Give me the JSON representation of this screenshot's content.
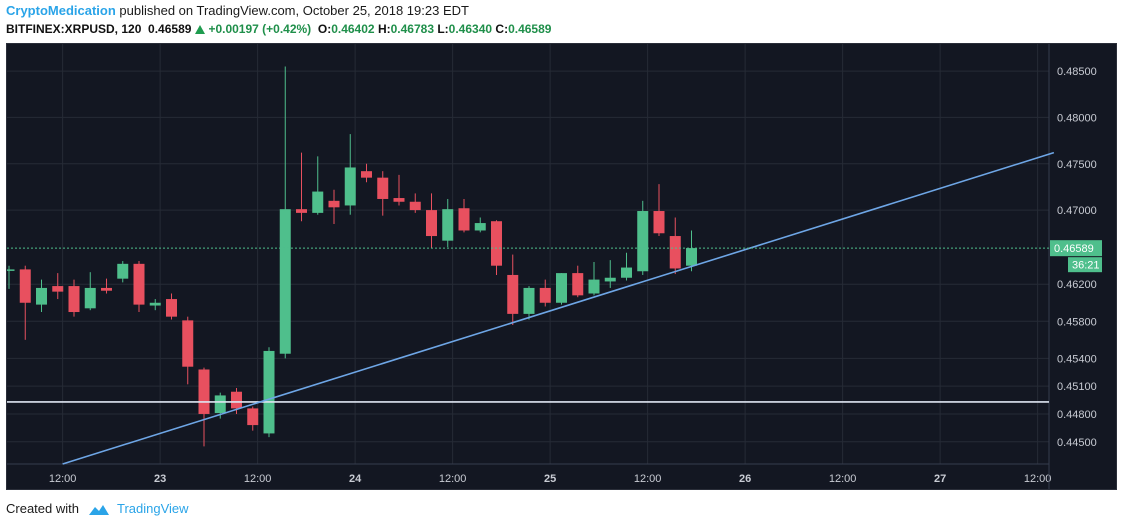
{
  "header": {
    "author": "CryptoMedication",
    "published_text": " published on TradingView.com, October 25, 2018 19:23 EDT",
    "symbol": "BITFINEX:XRPUSD, 120",
    "last": "0.46589",
    "change": "+0.00197 (+0.42%)",
    "o_label": "O:",
    "o_value": "0.46402",
    "h_label": "H:",
    "h_value": "0.46783",
    "l_label": "L:",
    "l_value": "0.46340",
    "c_label": "C:",
    "c_value": "0.46589"
  },
  "footer": {
    "created_with": "Created with",
    "brand": "TradingView"
  },
  "colors": {
    "background": "#131722",
    "grid": "#262b36",
    "up": "#4fbf8c",
    "down": "#e8505f",
    "trendline": "#6ea6e6",
    "support": "#dfe6f2",
    "price_line": "#4fbf8c",
    "axis_text": "#c9ccd4"
  },
  "chart_data": {
    "type": "candlestick",
    "interval": "120",
    "ylim": [
      0.4426,
      0.4876
    ],
    "price_scale": "linear",
    "y_ticks": [
      "0.48500",
      "0.48000",
      "0.47500",
      "0.47000",
      "0.46200",
      "0.45800",
      "0.45400",
      "0.45100",
      "0.44800",
      "0.44500"
    ],
    "y_tick_values": [
      0.485,
      0.48,
      0.475,
      0.47,
      0.462,
      0.458,
      0.454,
      0.451,
      0.448,
      0.445
    ],
    "x_ticks": [
      {
        "bar": 3.3,
        "label": "12:00",
        "bold": false
      },
      {
        "bar": 9.3,
        "label": "23",
        "bold": true
      },
      {
        "bar": 15.3,
        "label": "12:00",
        "bold": false
      },
      {
        "bar": 21.3,
        "label": "24",
        "bold": true
      },
      {
        "bar": 27.3,
        "label": "12:00",
        "bold": false
      },
      {
        "bar": 33.3,
        "label": "25",
        "bold": true
      },
      {
        "bar": 39.3,
        "label": "12:00",
        "bold": false
      },
      {
        "bar": 45.3,
        "label": "26",
        "bold": true
      },
      {
        "bar": 51.3,
        "label": "12:00",
        "bold": false
      },
      {
        "bar": 57.3,
        "label": "27",
        "bold": true
      },
      {
        "bar": 63.3,
        "label": "12:00",
        "bold": false
      }
    ],
    "candles": [
      {
        "o": 0.4636,
        "h": 0.464,
        "l": 0.4615,
        "c": 0.4636
      },
      {
        "o": 0.4636,
        "h": 0.464,
        "l": 0.456,
        "c": 0.46
      },
      {
        "o": 0.4598,
        "h": 0.4625,
        "l": 0.459,
        "c": 0.4616
      },
      {
        "o": 0.4618,
        "h": 0.4632,
        "l": 0.4604,
        "c": 0.4612
      },
      {
        "o": 0.4618,
        "h": 0.4625,
        "l": 0.4585,
        "c": 0.459
      },
      {
        "o": 0.4594,
        "h": 0.4633,
        "l": 0.4592,
        "c": 0.4616
      },
      {
        "o": 0.4616,
        "h": 0.4626,
        "l": 0.461,
        "c": 0.4613
      },
      {
        "o": 0.4626,
        "h": 0.4645,
        "l": 0.4622,
        "c": 0.4642
      },
      {
        "o": 0.4642,
        "h": 0.4645,
        "l": 0.459,
        "c": 0.4598
      },
      {
        "o": 0.4597,
        "h": 0.4604,
        "l": 0.4592,
        "c": 0.46
      },
      {
        "o": 0.4604,
        "h": 0.461,
        "l": 0.4582,
        "c": 0.4585
      },
      {
        "o": 0.4581,
        "h": 0.4585,
        "l": 0.4512,
        "c": 0.4531
      },
      {
        "o": 0.4528,
        "h": 0.453,
        "l": 0.4445,
        "c": 0.448
      },
      {
        "o": 0.4481,
        "h": 0.4503,
        "l": 0.4475,
        "c": 0.45
      },
      {
        "o": 0.4504,
        "h": 0.4508,
        "l": 0.448,
        "c": 0.4486
      },
      {
        "o": 0.4486,
        "h": 0.4488,
        "l": 0.4462,
        "c": 0.4468
      },
      {
        "o": 0.4459,
        "h": 0.4552,
        "l": 0.4455,
        "c": 0.4548
      },
      {
        "o": 0.4545,
        "h": 0.4855,
        "l": 0.454,
        "c": 0.4701
      },
      {
        "o": 0.4701,
        "h": 0.4762,
        "l": 0.4688,
        "c": 0.4697
      },
      {
        "o": 0.4697,
        "h": 0.4758,
        "l": 0.4695,
        "c": 0.472
      },
      {
        "o": 0.471,
        "h": 0.4722,
        "l": 0.4685,
        "c": 0.4703
      },
      {
        "o": 0.4705,
        "h": 0.4782,
        "l": 0.4695,
        "c": 0.4746
      },
      {
        "o": 0.4742,
        "h": 0.475,
        "l": 0.473,
        "c": 0.4735
      },
      {
        "o": 0.4735,
        "h": 0.4742,
        "l": 0.4694,
        "c": 0.4712
      },
      {
        "o": 0.4713,
        "h": 0.4738,
        "l": 0.4705,
        "c": 0.4709
      },
      {
        "o": 0.4709,
        "h": 0.4718,
        "l": 0.4697,
        "c": 0.47
      },
      {
        "o": 0.47,
        "h": 0.4718,
        "l": 0.4659,
        "c": 0.4672
      },
      {
        "o": 0.4667,
        "h": 0.4712,
        "l": 0.466,
        "c": 0.4701
      },
      {
        "o": 0.4702,
        "h": 0.4712,
        "l": 0.4676,
        "c": 0.4678
      },
      {
        "o": 0.4678,
        "h": 0.4692,
        "l": 0.4676,
        "c": 0.4686
      },
      {
        "o": 0.4688,
        "h": 0.4689,
        "l": 0.463,
        "c": 0.464
      },
      {
        "o": 0.463,
        "h": 0.4652,
        "l": 0.4576,
        "c": 0.4588
      },
      {
        "o": 0.4588,
        "h": 0.4618,
        "l": 0.4582,
        "c": 0.4616
      },
      {
        "o": 0.4616,
        "h": 0.4625,
        "l": 0.4596,
        "c": 0.46
      },
      {
        "o": 0.46,
        "h": 0.4632,
        "l": 0.4598,
        "c": 0.4632
      },
      {
        "o": 0.4632,
        "h": 0.464,
        "l": 0.4606,
        "c": 0.4608
      },
      {
        "o": 0.461,
        "h": 0.4644,
        "l": 0.4608,
        "c": 0.4625
      },
      {
        "o": 0.4623,
        "h": 0.4646,
        "l": 0.4616,
        "c": 0.4627
      },
      {
        "o": 0.4627,
        "h": 0.4654,
        "l": 0.4624,
        "c": 0.4638
      },
      {
        "o": 0.4634,
        "h": 0.471,
        "l": 0.463,
        "c": 0.4699
      },
      {
        "o": 0.4699,
        "h": 0.4728,
        "l": 0.4672,
        "c": 0.4675
      },
      {
        "o": 0.4672,
        "h": 0.4692,
        "l": 0.4631,
        "c": 0.4637
      },
      {
        "o": 0.464,
        "h": 0.4678,
        "l": 0.4634,
        "c": 0.4659
      }
    ],
    "current_price": 0.46589,
    "current_price_label": "0.46589",
    "countdown_label": "36:21",
    "support_level": 0.4493,
    "trendline": {
      "p1": {
        "bar": 3.3,
        "price": 0.4426
      },
      "p2": {
        "bar": 64.3,
        "price": 0.4762
      }
    }
  }
}
